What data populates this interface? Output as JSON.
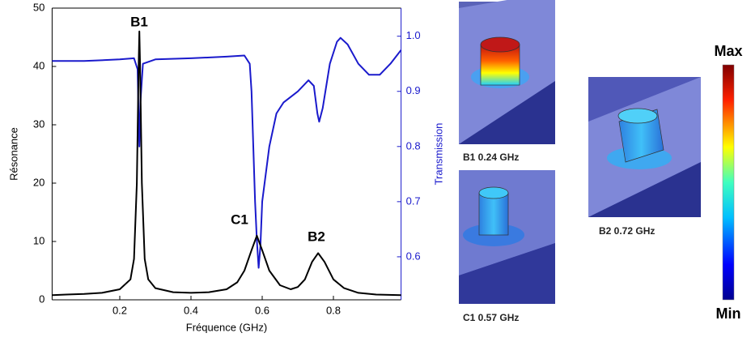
{
  "chart_data": {
    "type": "line",
    "x_label": "Fréquence (GHz)",
    "y_label": "Résonance",
    "y2_label": "Transmission",
    "xlim": [
      0.01,
      0.99
    ],
    "xticks": [
      0.2,
      0.4,
      0.6,
      0.8
    ],
    "ylim": [
      0,
      50
    ],
    "yticks": [
      0,
      10,
      20,
      30,
      40,
      50
    ],
    "y2lim": [
      0.522,
      1.051
    ],
    "y2ticks": [
      0.6,
      0.7,
      0.8,
      0.9,
      {
        "value": 1,
        "label": "1.0"
      }
    ],
    "y2_color": "#1a1acc",
    "series": [
      {
        "name": "Résonance",
        "color": "#000000",
        "x": [
          0.01,
          0.05,
          0.1,
          0.15,
          0.2,
          0.23,
          0.24,
          0.248,
          0.253,
          0.255,
          0.257,
          0.262,
          0.27,
          0.28,
          0.3,
          0.35,
          0.4,
          0.45,
          0.5,
          0.53,
          0.55,
          0.57,
          0.585,
          0.6,
          0.62,
          0.65,
          0.68,
          0.7,
          0.72,
          0.74,
          0.757,
          0.775,
          0.8,
          0.83,
          0.87,
          0.92,
          0.99
        ],
        "values": [
          0.8,
          0.9,
          1.0,
          1.2,
          1.8,
          3.5,
          7,
          20,
          40,
          46,
          40,
          20,
          7,
          3.5,
          2,
          1.3,
          1.2,
          1.3,
          1.8,
          3,
          5,
          8.5,
          11,
          8.5,
          5,
          2.5,
          1.8,
          2.2,
          3.5,
          6.5,
          8,
          6.5,
          3.5,
          2,
          1.2,
          0.9,
          0.8
        ]
      },
      {
        "name": "Transmission",
        "color": "#1a1acc",
        "axis": "y2",
        "x": [
          0.01,
          0.1,
          0.2,
          0.24,
          0.25,
          0.253,
          0.255,
          0.258,
          0.265,
          0.3,
          0.4,
          0.5,
          0.55,
          0.565,
          0.57,
          0.575,
          0.58,
          0.585,
          0.59,
          0.595,
          0.6,
          0.62,
          0.64,
          0.66,
          0.7,
          0.73,
          0.745,
          0.755,
          0.76,
          0.77,
          0.79,
          0.81,
          0.82,
          0.84,
          0.87,
          0.9,
          0.93,
          0.96,
          0.99
        ],
        "values": [
          0.955,
          0.955,
          0.958,
          0.96,
          0.94,
          0.85,
          0.8,
          0.88,
          0.95,
          0.958,
          0.96,
          0.963,
          0.965,
          0.95,
          0.9,
          0.8,
          0.7,
          0.63,
          0.58,
          0.62,
          0.7,
          0.8,
          0.86,
          0.88,
          0.9,
          0.92,
          0.91,
          0.86,
          0.845,
          0.87,
          0.95,
          0.99,
          0.997,
          0.985,
          0.95,
          0.93,
          0.93,
          0.95,
          0.975
        ]
      }
    ],
    "annotations": [
      "B1",
      "C1",
      "B2"
    ]
  },
  "panels": [
    {
      "label": "B1 0.24 GHz"
    },
    {
      "label": "C1 0.57 GHz"
    },
    {
      "label": "B2 0.72 GHz"
    }
  ],
  "colorbar": {
    "max": "Max",
    "min": "Min"
  }
}
